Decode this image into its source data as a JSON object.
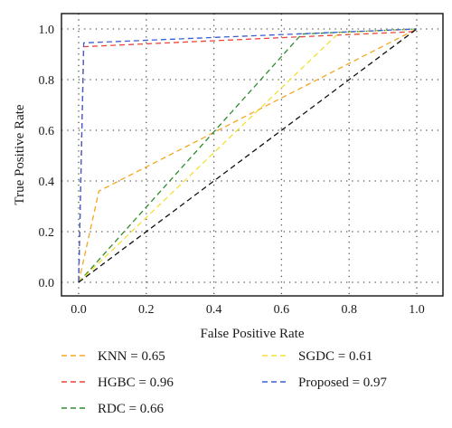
{
  "chart_data": {
    "type": "line",
    "xlabel": "False Positive Rate",
    "ylabel": "True Positive Rate",
    "xlim": [
      0.0,
      1.0
    ],
    "ylim": [
      0.0,
      1.0
    ],
    "xticks": [
      "0.0",
      "0.2",
      "0.4",
      "0.6",
      "0.8",
      "1.0"
    ],
    "yticks": [
      "0.0",
      "0.2",
      "0.4",
      "0.6",
      "0.8",
      "1.0"
    ],
    "grid": true,
    "legend_position": "bottom",
    "series": [
      {
        "name": "KNN = 0.65",
        "color": "#f5a623",
        "x": [
          0.0,
          0.06,
          1.0
        ],
        "y": [
          0.0,
          0.36,
          1.0
        ]
      },
      {
        "name": "HGBC = 0.96",
        "color": "#e8473a",
        "x": [
          0.0,
          0.015,
          1.0
        ],
        "y": [
          0.0,
          0.93,
          0.99
        ]
      },
      {
        "name": "RDC = 0.66",
        "color": "#2e8b2e",
        "x": [
          0.0,
          0.66,
          1.0
        ],
        "y": [
          0.0,
          0.98,
          1.0
        ]
      },
      {
        "name": "SGDC = 0.61",
        "color": "#f2e033",
        "x": [
          0.0,
          0.77,
          1.0
        ],
        "y": [
          0.0,
          0.985,
          1.0
        ]
      },
      {
        "name": "Proposed = 0.97",
        "color": "#3a5fd0",
        "x": [
          0.0,
          0.015,
          1.0
        ],
        "y": [
          0.0,
          0.945,
          1.0
        ]
      },
      {
        "name": "",
        "color": "#111111",
        "x": [
          0.0,
          1.0
        ],
        "y": [
          0.0,
          1.0
        ]
      }
    ]
  }
}
